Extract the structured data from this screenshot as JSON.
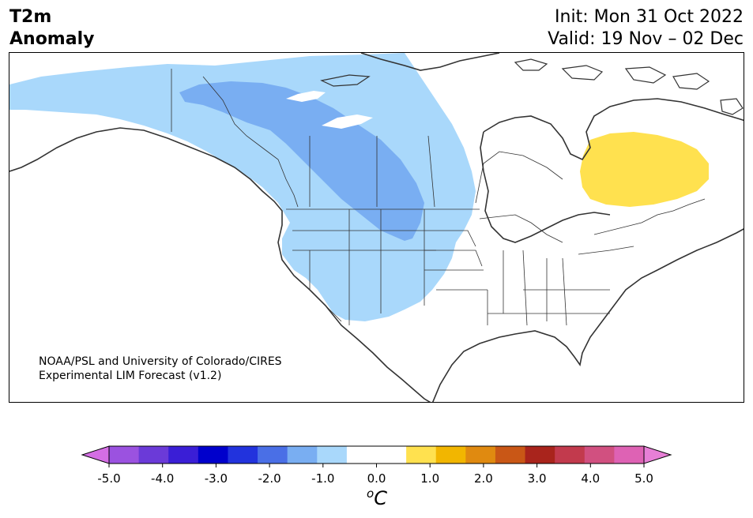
{
  "header": {
    "title_line1": "T2m",
    "title_line2": "Anomaly",
    "init_text": "Init: Mon 31 Oct 2022",
    "valid_text": "Valid: 19 Nov – 02 Dec"
  },
  "credit": {
    "line1": "NOAA/PSL and University of Colorado/CIRES",
    "line2": "Experimental LIM Forecast (v1.2)"
  },
  "colorbar": {
    "unit_base": "C",
    "unit_sup": "o",
    "tick_labels": [
      "-5.0",
      "-4.0",
      "-3.0",
      "-2.0",
      "-1.0",
      "0.0",
      "1.0",
      "2.0",
      "3.0",
      "4.0",
      "5.0"
    ],
    "colors": [
      "#d46ee4",
      "#9b52e0",
      "#6b3ad8",
      "#3a1ed6",
      "#0000cc",
      "#2233dd",
      "#4a6fe6",
      "#79aef2",
      "#a9d8fb",
      "#ffffff",
      "#ffffff",
      "#ffe14f",
      "#f2b600",
      "#e08a10",
      "#c95716",
      "#a9241c",
      "#c23a4d",
      "#d15080",
      "#de62b4",
      "#e77fd6"
    ]
  },
  "map": {
    "anomaly_regions": [
      {
        "label": "-1.0 to -0.5",
        "color": "#a9d8fb"
      },
      {
        "label": "-1.5 to -1.0",
        "color": "#79aef2"
      },
      {
        "label": "0.5 to 1.0",
        "color": "#ffe14f"
      }
    ]
  }
}
